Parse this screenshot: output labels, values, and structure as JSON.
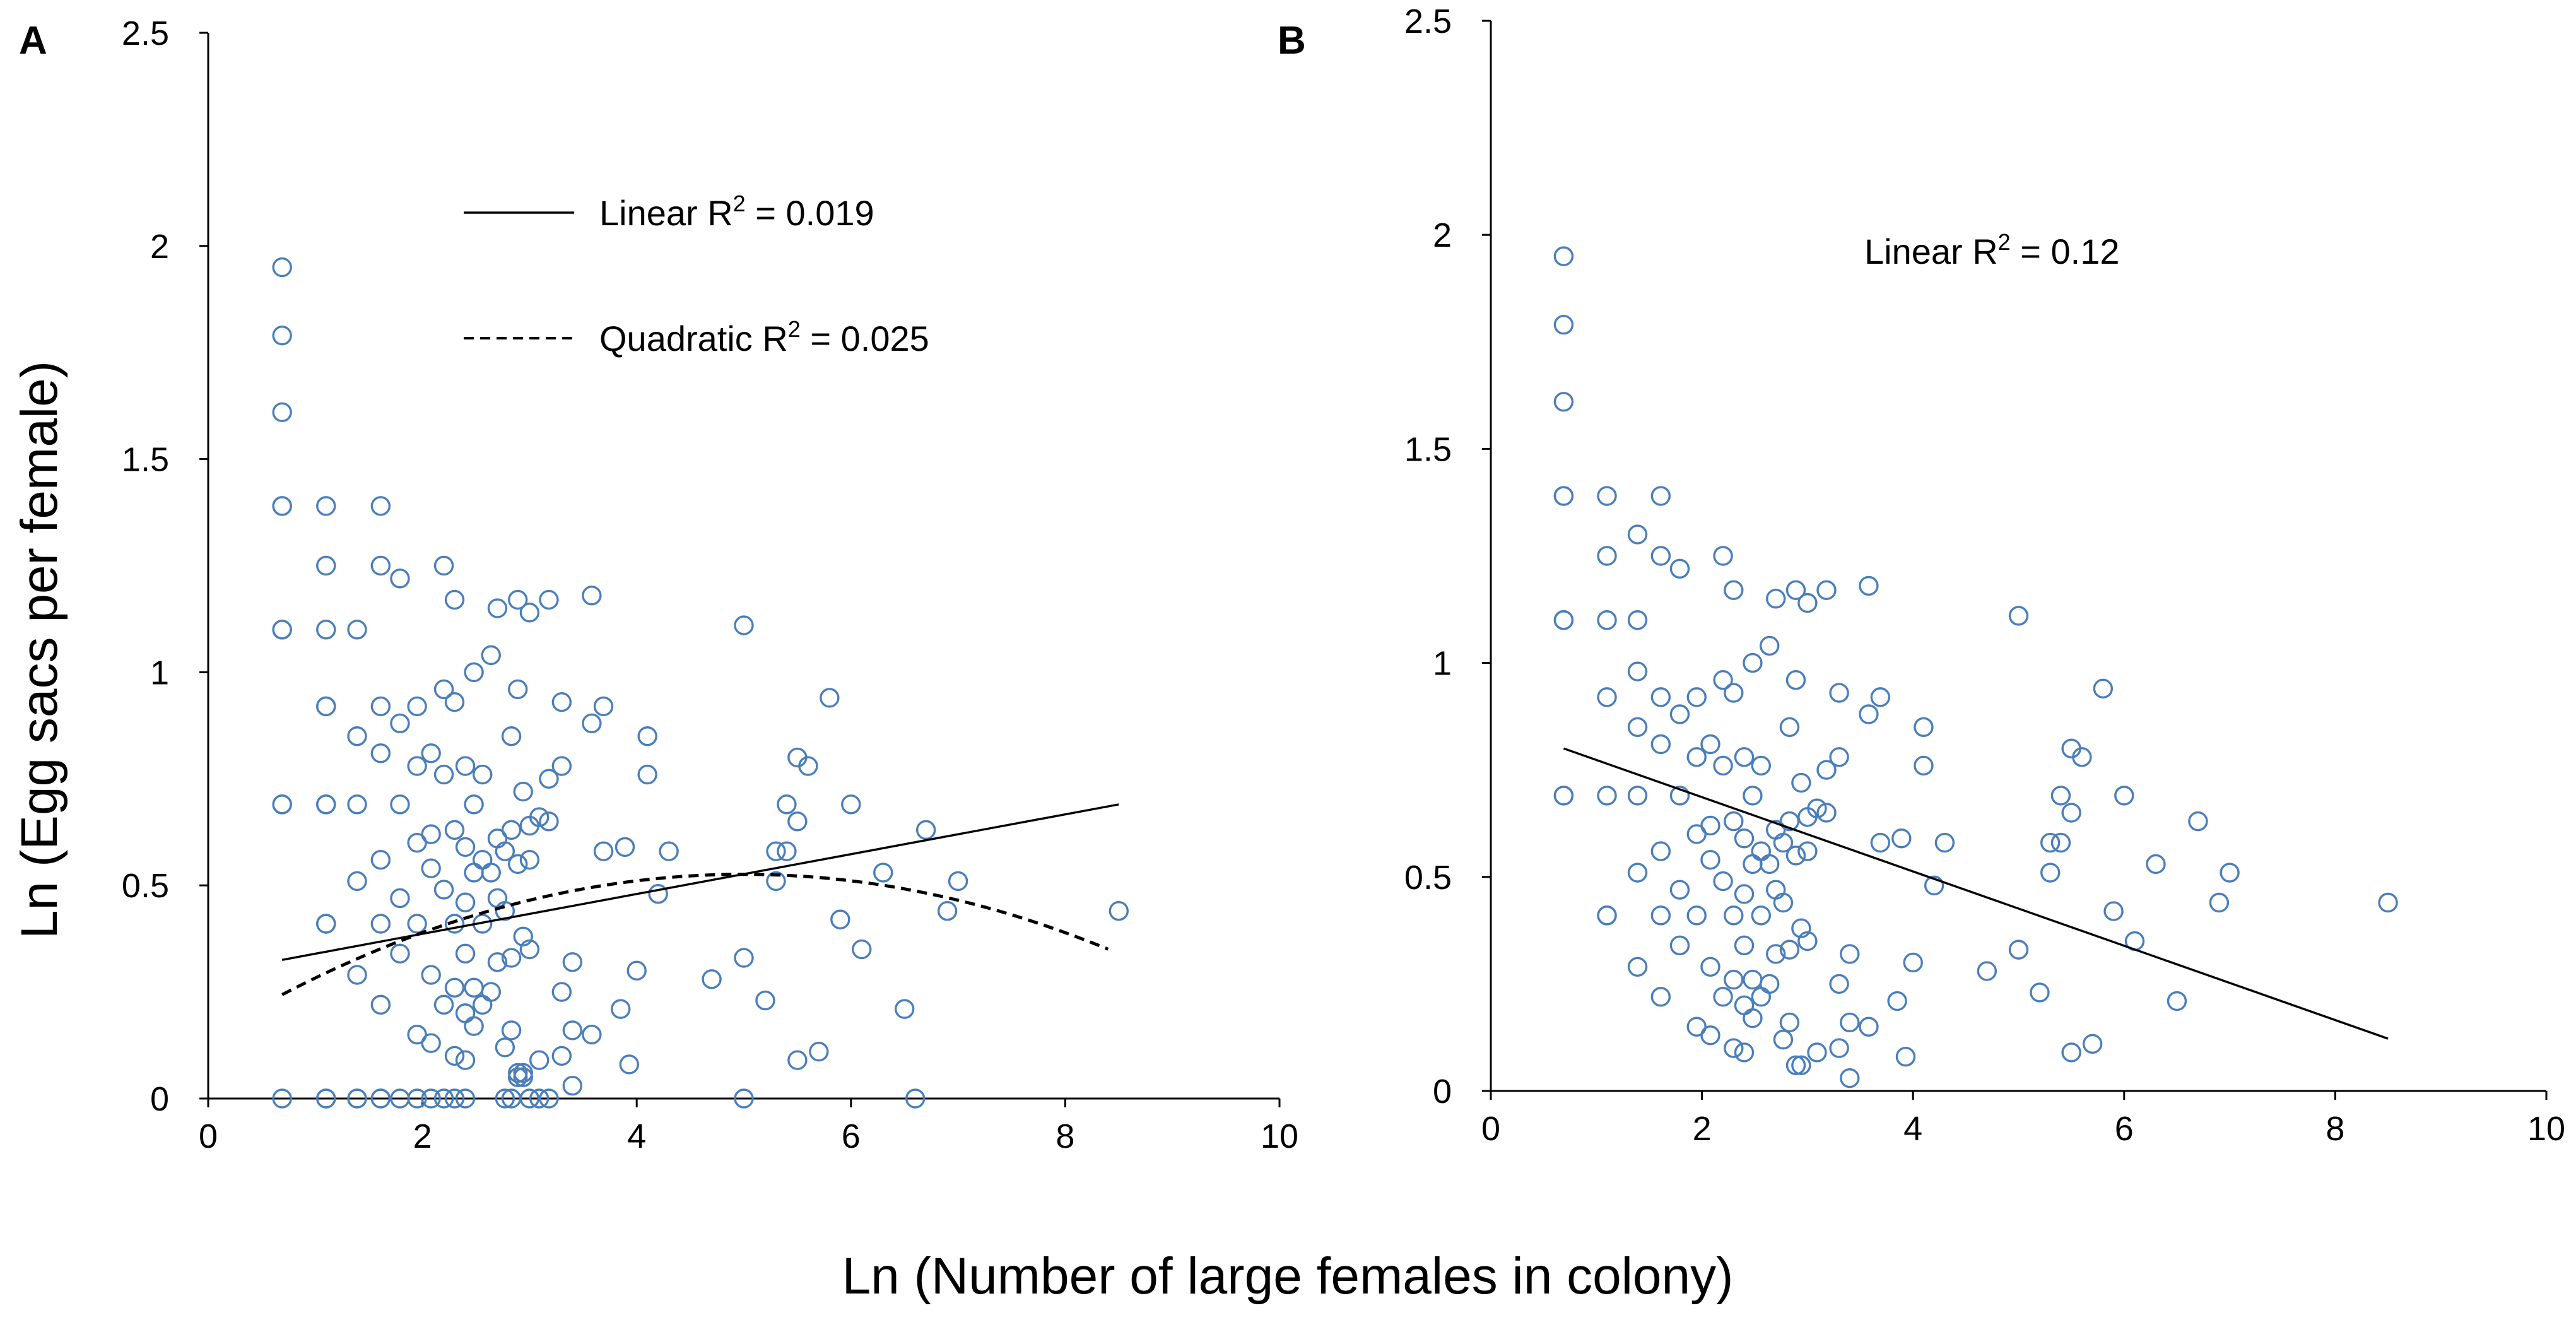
{
  "figure": {
    "shared_xlabel": "Ln (Number of large females in colony)",
    "ylabel": "Ln (Egg sacs per female)"
  },
  "chart_data": [
    {
      "panel": "A",
      "type": "scatter",
      "xlim": [
        0,
        10
      ],
      "ylim": [
        0,
        2.5
      ],
      "x_ticks": [
        "0",
        "2",
        "4",
        "6",
        "8",
        "10"
      ],
      "y_ticks": [
        "0",
        "0.5",
        "1",
        "1.5",
        "2",
        "2.5"
      ],
      "ylabel": "Ln (Egg sacs per female)",
      "xlabel": "Ln (Number of large females in colony)",
      "marker_color": "#4a7ebb",
      "legend": {
        "linear": {
          "prefix": "Linear R",
          "sup": "2",
          "suffix": " = 0.019"
        },
        "quadratic": {
          "prefix": "Quadratic R",
          "sup": "2",
          "suffix": " = 0.025"
        }
      },
      "fits": {
        "linear": {
          "slope": 0.0467,
          "intercept": 0.293,
          "x_range": [
            0.69,
            8.5
          ]
        },
        "quadratic": {
          "a": -0.0152,
          "b": 0.152,
          "c": 0.146,
          "x_range": [
            0.69,
            8.4
          ]
        }
      },
      "points": [
        [
          0.69,
          1.95
        ],
        [
          0.69,
          1.79
        ],
        [
          0.69,
          1.61
        ],
        [
          0.69,
          1.39
        ],
        [
          0.69,
          1.39
        ],
        [
          0.69,
          1.1
        ],
        [
          0.69,
          1.1
        ],
        [
          0.69,
          0.69
        ],
        [
          0.69,
          0.69
        ],
        [
          0.69,
          0
        ],
        [
          1.1,
          1.39
        ],
        [
          1.1,
          1.25
        ],
        [
          1.1,
          1.1
        ],
        [
          1.1,
          0.92
        ],
        [
          1.1,
          0.92
        ],
        [
          1.1,
          0.69
        ],
        [
          1.1,
          0.69
        ],
        [
          1.1,
          0.41
        ],
        [
          1.1,
          0.41
        ],
        [
          1.1,
          0
        ],
        [
          1.1,
          0
        ],
        [
          1.39,
          1.1
        ],
        [
          1.39,
          0.85
        ],
        [
          1.39,
          0.69
        ],
        [
          1.39,
          0.51
        ],
        [
          1.39,
          0.29
        ],
        [
          1.39,
          0
        ],
        [
          1.39,
          0
        ],
        [
          1.61,
          1.39
        ],
        [
          1.61,
          1.25
        ],
        [
          1.61,
          0.92
        ],
        [
          1.61,
          0.81
        ],
        [
          1.61,
          0.56
        ],
        [
          1.61,
          0.41
        ],
        [
          1.61,
          0.22
        ],
        [
          1.61,
          0
        ],
        [
          1.61,
          0
        ],
        [
          1.79,
          1.22
        ],
        [
          1.79,
          0.88
        ],
        [
          1.79,
          0.69
        ],
        [
          1.79,
          0.47
        ],
        [
          1.79,
          0.34
        ],
        [
          1.79,
          0
        ],
        [
          1.95,
          0.92
        ],
        [
          1.95,
          0.78
        ],
        [
          1.95,
          0.6
        ],
        [
          1.95,
          0.41
        ],
        [
          1.95,
          0.15
        ],
        [
          1.95,
          0
        ],
        [
          2.08,
          0.81
        ],
        [
          2.08,
          0.62
        ],
        [
          2.08,
          0.54
        ],
        [
          2.08,
          0.29
        ],
        [
          2.08,
          0.13
        ],
        [
          2.08,
          0
        ],
        [
          2.2,
          1.25
        ],
        [
          2.2,
          0.96
        ],
        [
          2.2,
          0.76
        ],
        [
          2.2,
          0.49
        ],
        [
          2.2,
          0.22
        ],
        [
          2.2,
          0
        ],
        [
          2.3,
          1.17
        ],
        [
          2.3,
          0.93
        ],
        [
          2.3,
          0.63
        ],
        [
          2.3,
          0.41
        ],
        [
          2.3,
          0.26
        ],
        [
          2.3,
          0.1
        ],
        [
          2.3,
          0
        ],
        [
          2.4,
          0.78
        ],
        [
          2.4,
          0.59
        ],
        [
          2.4,
          0.46
        ],
        [
          2.4,
          0.34
        ],
        [
          2.4,
          0.2
        ],
        [
          2.4,
          0.09
        ],
        [
          2.4,
          0
        ],
        [
          2.48,
          1.0
        ],
        [
          2.48,
          0.69
        ],
        [
          2.48,
          0.53
        ],
        [
          2.48,
          0.26
        ],
        [
          2.48,
          0.17
        ],
        [
          2.56,
          0.76
        ],
        [
          2.56,
          0.56
        ],
        [
          2.56,
          0.41
        ],
        [
          2.56,
          0.22
        ],
        [
          2.64,
          1.04
        ],
        [
          2.64,
          0.53
        ],
        [
          2.64,
          0.25
        ],
        [
          2.7,
          1.15
        ],
        [
          2.7,
          0.61
        ],
        [
          2.7,
          0.47
        ],
        [
          2.7,
          0.32
        ],
        [
          2.77,
          0.58
        ],
        [
          2.77,
          0.44
        ],
        [
          2.77,
          0.12
        ],
        [
          2.77,
          0
        ],
        [
          2.83,
          0.85
        ],
        [
          2.83,
          0.63
        ],
        [
          2.83,
          0.33
        ],
        [
          2.83,
          0.16
        ],
        [
          2.83,
          0
        ],
        [
          2.89,
          1.17
        ],
        [
          2.89,
          0.96
        ],
        [
          2.89,
          0.55
        ],
        [
          2.89,
          0.06
        ],
        [
          2.89,
          0.05
        ],
        [
          2.94,
          0.72
        ],
        [
          2.94,
          0.38
        ],
        [
          2.94,
          0.06
        ],
        [
          2.94,
          0.05
        ],
        [
          3.0,
          1.14
        ],
        [
          3.0,
          0.64
        ],
        [
          3.0,
          0.56
        ],
        [
          3.0,
          0.35
        ],
        [
          3.0,
          0
        ],
        [
          3.09,
          0.66
        ],
        [
          3.09,
          0.09
        ],
        [
          3.09,
          0
        ],
        [
          3.18,
          1.17
        ],
        [
          3.18,
          0.75
        ],
        [
          3.18,
          0.65
        ],
        [
          3.18,
          0
        ],
        [
          3.3,
          0.93
        ],
        [
          3.3,
          0.78
        ],
        [
          3.3,
          0.25
        ],
        [
          3.3,
          0.1
        ],
        [
          3.4,
          0.32
        ],
        [
          3.4,
          0.16
        ],
        [
          3.4,
          0.03
        ],
        [
          3.58,
          1.18
        ],
        [
          3.58,
          0.88
        ],
        [
          3.58,
          0.15
        ],
        [
          3.69,
          0.92
        ],
        [
          3.69,
          0.58
        ],
        [
          3.85,
          0.21
        ],
        [
          3.89,
          0.59
        ],
        [
          3.93,
          0.08
        ],
        [
          4.0,
          0.3
        ],
        [
          4.1,
          0.85
        ],
        [
          4.1,
          0.76
        ],
        [
          4.2,
          0.48
        ],
        [
          4.3,
          0.58
        ],
        [
          4.7,
          0.28
        ],
        [
          5.0,
          1.11
        ],
        [
          5.0,
          0.33
        ],
        [
          5.0,
          0
        ],
        [
          5.2,
          0.23
        ],
        [
          5.3,
          0.58
        ],
        [
          5.3,
          0.51
        ],
        [
          5.4,
          0.69
        ],
        [
          5.4,
          0.58
        ],
        [
          5.5,
          0.8
        ],
        [
          5.5,
          0.65
        ],
        [
          5.5,
          0.09
        ],
        [
          5.6,
          0.78
        ],
        [
          5.7,
          0.11
        ],
        [
          5.8,
          0.94
        ],
        [
          5.9,
          0.42
        ],
        [
          6.0,
          0.69
        ],
        [
          6.1,
          0.35
        ],
        [
          6.3,
          0.53
        ],
        [
          6.5,
          0.21
        ],
        [
          6.6,
          0
        ],
        [
          6.7,
          0.63
        ],
        [
          6.9,
          0.44
        ],
        [
          7.0,
          0.51
        ],
        [
          8.5,
          0.44
        ]
      ]
    },
    {
      "panel": "B",
      "type": "scatter",
      "xlim": [
        0,
        10
      ],
      "ylim": [
        0,
        2.5
      ],
      "x_ticks": [
        "0",
        "2",
        "4",
        "6",
        "8",
        "10"
      ],
      "y_ticks": [
        "0",
        "0.5",
        "1",
        "1.5",
        "2",
        "2.5"
      ],
      "marker_color": "#4a7ebb",
      "legend": {
        "linear": {
          "prefix": "Linear R",
          "sup": "2",
          "suffix": " = 0.12"
        }
      },
      "fits": {
        "linear": {
          "slope": -0.0868,
          "intercept": 0.86,
          "x_range": [
            0.69,
            8.5
          ]
        }
      },
      "points": [
        [
          0.69,
          1.95
        ],
        [
          0.69,
          1.79
        ],
        [
          0.69,
          1.61
        ],
        [
          0.69,
          1.39
        ],
        [
          0.69,
          1.39
        ],
        [
          0.69,
          1.1
        ],
        [
          0.69,
          1.1
        ],
        [
          0.69,
          0.69
        ],
        [
          0.69,
          0.69
        ],
        [
          1.1,
          1.39
        ],
        [
          1.1,
          1.25
        ],
        [
          1.1,
          1.1
        ],
        [
          1.1,
          0.92
        ],
        [
          1.1,
          0.69
        ],
        [
          1.1,
          0.41
        ],
        [
          1.1,
          0.41
        ],
        [
          1.39,
          1.3
        ],
        [
          1.39,
          1.1
        ],
        [
          1.39,
          0.98
        ],
        [
          1.39,
          0.85
        ],
        [
          1.39,
          0.69
        ],
        [
          1.39,
          0.51
        ],
        [
          1.39,
          0.29
        ],
        [
          1.61,
          1.39
        ],
        [
          1.61,
          1.25
        ],
        [
          1.61,
          0.92
        ],
        [
          1.61,
          0.81
        ],
        [
          1.61,
          0.56
        ],
        [
          1.61,
          0.41
        ],
        [
          1.61,
          0.22
        ],
        [
          1.79,
          1.22
        ],
        [
          1.79,
          0.88
        ],
        [
          1.79,
          0.69
        ],
        [
          1.79,
          0.47
        ],
        [
          1.79,
          0.34
        ],
        [
          1.95,
          0.92
        ],
        [
          1.95,
          0.78
        ],
        [
          1.95,
          0.6
        ],
        [
          1.95,
          0.41
        ],
        [
          1.95,
          0.15
        ],
        [
          2.08,
          0.81
        ],
        [
          2.08,
          0.62
        ],
        [
          2.08,
          0.54
        ],
        [
          2.08,
          0.29
        ],
        [
          2.08,
          0.13
        ],
        [
          2.2,
          1.25
        ],
        [
          2.2,
          0.96
        ],
        [
          2.2,
          0.76
        ],
        [
          2.2,
          0.49
        ],
        [
          2.2,
          0.22
        ],
        [
          2.3,
          1.17
        ],
        [
          2.3,
          0.93
        ],
        [
          2.3,
          0.63
        ],
        [
          2.3,
          0.41
        ],
        [
          2.3,
          0.26
        ],
        [
          2.3,
          0.1
        ],
        [
          2.4,
          0.78
        ],
        [
          2.4,
          0.59
        ],
        [
          2.4,
          0.46
        ],
        [
          2.4,
          0.34
        ],
        [
          2.4,
          0.2
        ],
        [
          2.4,
          0.09
        ],
        [
          2.48,
          1.0
        ],
        [
          2.48,
          0.69
        ],
        [
          2.48,
          0.53
        ],
        [
          2.48,
          0.26
        ],
        [
          2.48,
          0.17
        ],
        [
          2.56,
          0.76
        ],
        [
          2.56,
          0.56
        ],
        [
          2.56,
          0.41
        ],
        [
          2.56,
          0.22
        ],
        [
          2.64,
          1.04
        ],
        [
          2.64,
          0.53
        ],
        [
          2.64,
          0.25
        ],
        [
          2.7,
          1.15
        ],
        [
          2.7,
          0.61
        ],
        [
          2.7,
          0.47
        ],
        [
          2.7,
          0.32
        ],
        [
          2.77,
          0.58
        ],
        [
          2.77,
          0.44
        ],
        [
          2.77,
          0.12
        ],
        [
          2.83,
          0.85
        ],
        [
          2.83,
          0.63
        ],
        [
          2.83,
          0.33
        ],
        [
          2.83,
          0.16
        ],
        [
          2.89,
          1.17
        ],
        [
          2.89,
          0.96
        ],
        [
          2.89,
          0.55
        ],
        [
          2.89,
          0.06
        ],
        [
          2.94,
          0.72
        ],
        [
          2.94,
          0.38
        ],
        [
          2.94,
          0.06
        ],
        [
          3.0,
          1.14
        ],
        [
          3.0,
          0.64
        ],
        [
          3.0,
          0.56
        ],
        [
          3.0,
          0.35
        ],
        [
          3.09,
          0.66
        ],
        [
          3.09,
          0.09
        ],
        [
          3.18,
          1.17
        ],
        [
          3.18,
          0.75
        ],
        [
          3.18,
          0.65
        ],
        [
          3.3,
          0.93
        ],
        [
          3.3,
          0.78
        ],
        [
          3.3,
          0.25
        ],
        [
          3.3,
          0.1
        ],
        [
          3.4,
          0.32
        ],
        [
          3.4,
          0.16
        ],
        [
          3.4,
          0.03
        ],
        [
          3.58,
          1.18
        ],
        [
          3.58,
          0.88
        ],
        [
          3.58,
          0.15
        ],
        [
          3.69,
          0.92
        ],
        [
          3.69,
          0.58
        ],
        [
          3.85,
          0.21
        ],
        [
          3.89,
          0.59
        ],
        [
          3.93,
          0.08
        ],
        [
          4.0,
          0.3
        ],
        [
          4.1,
          0.85
        ],
        [
          4.1,
          0.76
        ],
        [
          4.2,
          0.48
        ],
        [
          4.3,
          0.58
        ],
        [
          4.7,
          0.28
        ],
        [
          5.0,
          1.11
        ],
        [
          5.0,
          0.33
        ],
        [
          5.2,
          0.23
        ],
        [
          5.3,
          0.58
        ],
        [
          5.3,
          0.51
        ],
        [
          5.4,
          0.69
        ],
        [
          5.4,
          0.58
        ],
        [
          5.5,
          0.8
        ],
        [
          5.5,
          0.65
        ],
        [
          5.5,
          0.09
        ],
        [
          5.6,
          0.78
        ],
        [
          5.7,
          0.11
        ],
        [
          5.8,
          0.94
        ],
        [
          5.9,
          0.42
        ],
        [
          6.0,
          0.69
        ],
        [
          6.1,
          0.35
        ],
        [
          6.3,
          0.53
        ],
        [
          6.5,
          0.21
        ],
        [
          6.7,
          0.63
        ],
        [
          6.9,
          0.44
        ],
        [
          7.0,
          0.51
        ],
        [
          8.5,
          0.44
        ]
      ]
    }
  ]
}
